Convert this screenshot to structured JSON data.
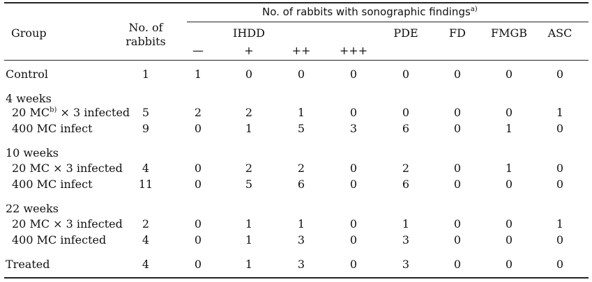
{
  "header": {
    "group": "Group",
    "no_rabbits_line1": "No. of",
    "no_rabbits_line2": "rabbits",
    "findings_title": "No. of rabbits with sonographic findings",
    "findings_sup": "a)",
    "ihdd": "IHDD",
    "ihdd_sub": [
      "—",
      "+",
      "++",
      "+++"
    ],
    "pde": "PDE",
    "fd": "FD",
    "fmgb": "FMGB",
    "asc": "ASC"
  },
  "rows": [
    {
      "label": "Control",
      "values": [
        "1",
        "1",
        "0",
        "0",
        "0",
        "0",
        "0",
        "0",
        "0"
      ]
    },
    {
      "label": "4 weeks"
    },
    {
      "label_a": "20 MC",
      "label_sup": "b)",
      "label_b": " × 3 infected",
      "values": [
        "5",
        "2",
        "2",
        "1",
        "0",
        "0",
        "0",
        "0",
        "1"
      ]
    },
    {
      "label": "400 MC infect",
      "values": [
        "9",
        "0",
        "1",
        "5",
        "3",
        "6",
        "0",
        "1",
        "0"
      ]
    },
    {
      "label": "10 weeks"
    },
    {
      "label": "20 MC × 3 infected",
      "values": [
        "4",
        "0",
        "2",
        "2",
        "0",
        "2",
        "0",
        "1",
        "0"
      ]
    },
    {
      "label": "400 MC infect",
      "values": [
        "11",
        "0",
        "5",
        "6",
        "0",
        "6",
        "0",
        "0",
        "0"
      ]
    },
    {
      "label": "22 weeks"
    },
    {
      "label": "20 MC × 3 infected",
      "values": [
        "2",
        "0",
        "1",
        "1",
        "0",
        "1",
        "0",
        "0",
        "1"
      ]
    },
    {
      "label": "400 MC infected",
      "values": [
        "4",
        "0",
        "1",
        "3",
        "0",
        "3",
        "0",
        "0",
        "0"
      ]
    },
    {
      "label": "Treated",
      "values": [
        "4",
        "0",
        "1",
        "3",
        "0",
        "3",
        "0",
        "0",
        "0"
      ]
    }
  ]
}
